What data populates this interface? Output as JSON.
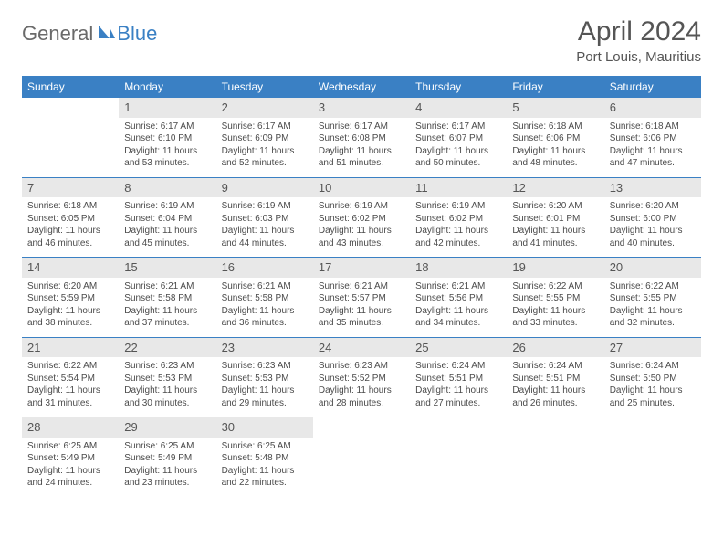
{
  "logo": {
    "general": "General",
    "blue": "Blue"
  },
  "title": "April 2024",
  "location": "Port Louis, Mauritius",
  "colors": {
    "header_bg": "#3a80c4",
    "header_text": "#ffffff",
    "daynum_bg": "#e8e8e8",
    "text": "#4a4a4a",
    "row_border": "#3a80c4",
    "logo_blue": "#3a80c4",
    "logo_gray": "#6a6a6a"
  },
  "weekdays": [
    "Sunday",
    "Monday",
    "Tuesday",
    "Wednesday",
    "Thursday",
    "Friday",
    "Saturday"
  ],
  "weeks": [
    [
      {
        "day": "",
        "lines": []
      },
      {
        "day": "1",
        "lines": [
          "Sunrise: 6:17 AM",
          "Sunset: 6:10 PM",
          "Daylight: 11 hours",
          "and 53 minutes."
        ]
      },
      {
        "day": "2",
        "lines": [
          "Sunrise: 6:17 AM",
          "Sunset: 6:09 PM",
          "Daylight: 11 hours",
          "and 52 minutes."
        ]
      },
      {
        "day": "3",
        "lines": [
          "Sunrise: 6:17 AM",
          "Sunset: 6:08 PM",
          "Daylight: 11 hours",
          "and 51 minutes."
        ]
      },
      {
        "day": "4",
        "lines": [
          "Sunrise: 6:17 AM",
          "Sunset: 6:07 PM",
          "Daylight: 11 hours",
          "and 50 minutes."
        ]
      },
      {
        "day": "5",
        "lines": [
          "Sunrise: 6:18 AM",
          "Sunset: 6:06 PM",
          "Daylight: 11 hours",
          "and 48 minutes."
        ]
      },
      {
        "day": "6",
        "lines": [
          "Sunrise: 6:18 AM",
          "Sunset: 6:06 PM",
          "Daylight: 11 hours",
          "and 47 minutes."
        ]
      }
    ],
    [
      {
        "day": "7",
        "lines": [
          "Sunrise: 6:18 AM",
          "Sunset: 6:05 PM",
          "Daylight: 11 hours",
          "and 46 minutes."
        ]
      },
      {
        "day": "8",
        "lines": [
          "Sunrise: 6:19 AM",
          "Sunset: 6:04 PM",
          "Daylight: 11 hours",
          "and 45 minutes."
        ]
      },
      {
        "day": "9",
        "lines": [
          "Sunrise: 6:19 AM",
          "Sunset: 6:03 PM",
          "Daylight: 11 hours",
          "and 44 minutes."
        ]
      },
      {
        "day": "10",
        "lines": [
          "Sunrise: 6:19 AM",
          "Sunset: 6:02 PM",
          "Daylight: 11 hours",
          "and 43 minutes."
        ]
      },
      {
        "day": "11",
        "lines": [
          "Sunrise: 6:19 AM",
          "Sunset: 6:02 PM",
          "Daylight: 11 hours",
          "and 42 minutes."
        ]
      },
      {
        "day": "12",
        "lines": [
          "Sunrise: 6:20 AM",
          "Sunset: 6:01 PM",
          "Daylight: 11 hours",
          "and 41 minutes."
        ]
      },
      {
        "day": "13",
        "lines": [
          "Sunrise: 6:20 AM",
          "Sunset: 6:00 PM",
          "Daylight: 11 hours",
          "and 40 minutes."
        ]
      }
    ],
    [
      {
        "day": "14",
        "lines": [
          "Sunrise: 6:20 AM",
          "Sunset: 5:59 PM",
          "Daylight: 11 hours",
          "and 38 minutes."
        ]
      },
      {
        "day": "15",
        "lines": [
          "Sunrise: 6:21 AM",
          "Sunset: 5:58 PM",
          "Daylight: 11 hours",
          "and 37 minutes."
        ]
      },
      {
        "day": "16",
        "lines": [
          "Sunrise: 6:21 AM",
          "Sunset: 5:58 PM",
          "Daylight: 11 hours",
          "and 36 minutes."
        ]
      },
      {
        "day": "17",
        "lines": [
          "Sunrise: 6:21 AM",
          "Sunset: 5:57 PM",
          "Daylight: 11 hours",
          "and 35 minutes."
        ]
      },
      {
        "day": "18",
        "lines": [
          "Sunrise: 6:21 AM",
          "Sunset: 5:56 PM",
          "Daylight: 11 hours",
          "and 34 minutes."
        ]
      },
      {
        "day": "19",
        "lines": [
          "Sunrise: 6:22 AM",
          "Sunset: 5:55 PM",
          "Daylight: 11 hours",
          "and 33 minutes."
        ]
      },
      {
        "day": "20",
        "lines": [
          "Sunrise: 6:22 AM",
          "Sunset: 5:55 PM",
          "Daylight: 11 hours",
          "and 32 minutes."
        ]
      }
    ],
    [
      {
        "day": "21",
        "lines": [
          "Sunrise: 6:22 AM",
          "Sunset: 5:54 PM",
          "Daylight: 11 hours",
          "and 31 minutes."
        ]
      },
      {
        "day": "22",
        "lines": [
          "Sunrise: 6:23 AM",
          "Sunset: 5:53 PM",
          "Daylight: 11 hours",
          "and 30 minutes."
        ]
      },
      {
        "day": "23",
        "lines": [
          "Sunrise: 6:23 AM",
          "Sunset: 5:53 PM",
          "Daylight: 11 hours",
          "and 29 minutes."
        ]
      },
      {
        "day": "24",
        "lines": [
          "Sunrise: 6:23 AM",
          "Sunset: 5:52 PM",
          "Daylight: 11 hours",
          "and 28 minutes."
        ]
      },
      {
        "day": "25",
        "lines": [
          "Sunrise: 6:24 AM",
          "Sunset: 5:51 PM",
          "Daylight: 11 hours",
          "and 27 minutes."
        ]
      },
      {
        "day": "26",
        "lines": [
          "Sunrise: 6:24 AM",
          "Sunset: 5:51 PM",
          "Daylight: 11 hours",
          "and 26 minutes."
        ]
      },
      {
        "day": "27",
        "lines": [
          "Sunrise: 6:24 AM",
          "Sunset: 5:50 PM",
          "Daylight: 11 hours",
          "and 25 minutes."
        ]
      }
    ],
    [
      {
        "day": "28",
        "lines": [
          "Sunrise: 6:25 AM",
          "Sunset: 5:49 PM",
          "Daylight: 11 hours",
          "and 24 minutes."
        ]
      },
      {
        "day": "29",
        "lines": [
          "Sunrise: 6:25 AM",
          "Sunset: 5:49 PM",
          "Daylight: 11 hours",
          "and 23 minutes."
        ]
      },
      {
        "day": "30",
        "lines": [
          "Sunrise: 6:25 AM",
          "Sunset: 5:48 PM",
          "Daylight: 11 hours",
          "and 22 minutes."
        ]
      },
      {
        "day": "",
        "lines": []
      },
      {
        "day": "",
        "lines": []
      },
      {
        "day": "",
        "lines": []
      },
      {
        "day": "",
        "lines": []
      }
    ]
  ]
}
